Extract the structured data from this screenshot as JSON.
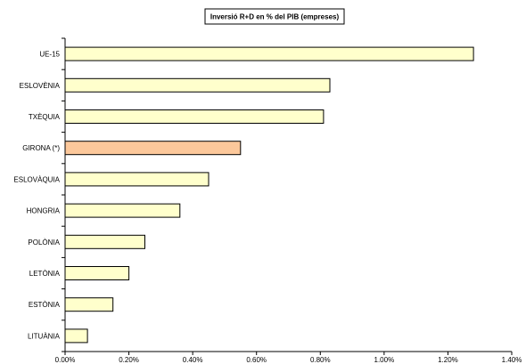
{
  "chart_data": {
    "type": "bar",
    "orientation": "horizontal",
    "title": "Inversió R+D en % del PIB (empreses)",
    "categories": [
      "UE-15",
      "ESLOVÈNIA",
      "TXÈQUIA",
      "GIRONA (*)",
      "ESLOVÀQUIA",
      "HONGRIA",
      "POLÒNIA",
      "LETÒNIA",
      "ESTÒNIA",
      "LITUÀNIA"
    ],
    "values": [
      1.28,
      0.83,
      0.81,
      0.55,
      0.45,
      0.36,
      0.25,
      0.2,
      0.15,
      0.07
    ],
    "xlim": [
      0,
      1.4
    ],
    "x_ticks": [
      0,
      0.2,
      0.4,
      0.6,
      0.8,
      1.0,
      1.2,
      1.4
    ],
    "x_tick_labels": [
      "0.00%",
      "0.20%",
      "0.40%",
      "0.60%",
      "0.80%",
      "1.00%",
      "1.20%",
      "1.40%"
    ],
    "grid": false,
    "legend": "none",
    "colors": {
      "default_bar": "#ffffcc",
      "highlight_bar": "#fcc89b",
      "highlight_category": "GIRONA (*)",
      "bar_outline": "#000000",
      "axis": "#000000"
    }
  }
}
